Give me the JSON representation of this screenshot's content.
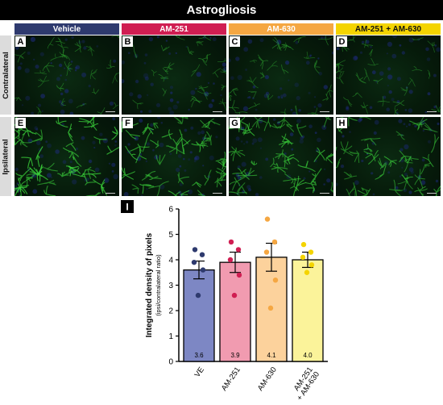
{
  "figure": {
    "title": "Astrogliosis",
    "columns": [
      {
        "label": "Vehicle",
        "color": "#2e3a6e",
        "text_color": "#ffffff"
      },
      {
        "label": "AM-251",
        "color": "#d01e52",
        "text_color": "#ffffff"
      },
      {
        "label": "AM-630",
        "color": "#f5a742",
        "text_color": "#ffffff"
      },
      {
        "label": "AM-251 + AM-630",
        "color": "#f4d400",
        "text_color": "#111111"
      }
    ],
    "rows": [
      {
        "label": "Contralateral"
      },
      {
        "label": "Ipsilateral"
      }
    ],
    "panels": [
      {
        "letter": "A",
        "intensity": 0.35
      },
      {
        "letter": "B",
        "intensity": 0.38
      },
      {
        "letter": "C",
        "intensity": 0.38
      },
      {
        "letter": "D",
        "intensity": 0.34
      },
      {
        "letter": "E",
        "intensity": 0.9
      },
      {
        "letter": "F",
        "intensity": 0.85
      },
      {
        "letter": "G",
        "intensity": 0.8
      },
      {
        "letter": "H",
        "intensity": 0.72
      }
    ],
    "stain_color": "#3cd63c",
    "nuclei_color": "#1d2a7a"
  },
  "chart_data": {
    "panel_letter": "I",
    "type": "bar",
    "ylabel": "Integrated density of pixels",
    "ylabel_sub": "(ipsi/contralateral ratio)",
    "ylim": [
      0,
      6
    ],
    "yticks": [
      0,
      1,
      2,
      3,
      4,
      5,
      6
    ],
    "categories": [
      "VE",
      "AM-251",
      "AM-630",
      "AM-251\n+ AM-630"
    ],
    "values": [
      3.6,
      3.9,
      4.1,
      4.0
    ],
    "value_labels": [
      "3.6",
      "3.9",
      "4.1",
      "4.0"
    ],
    "sem": [
      0.35,
      0.4,
      0.55,
      0.3
    ],
    "fill_colors": [
      "#7d87c4",
      "#f19bb0",
      "#fcd29c",
      "#fbf39a"
    ],
    "dot_colors": [
      "#2e3a6e",
      "#d01e52",
      "#f5a742",
      "#f4d400"
    ],
    "points": [
      [
        4.4,
        4.2,
        3.9,
        3.6,
        2.6
      ],
      [
        4.7,
        4.4,
        4.0,
        3.4,
        2.6
      ],
      [
        5.6,
        4.7,
        4.3,
        3.2,
        2.1
      ],
      [
        4.6,
        4.3,
        4.1,
        3.8,
        3.5
      ]
    ],
    "grid": false,
    "legend": "none"
  }
}
